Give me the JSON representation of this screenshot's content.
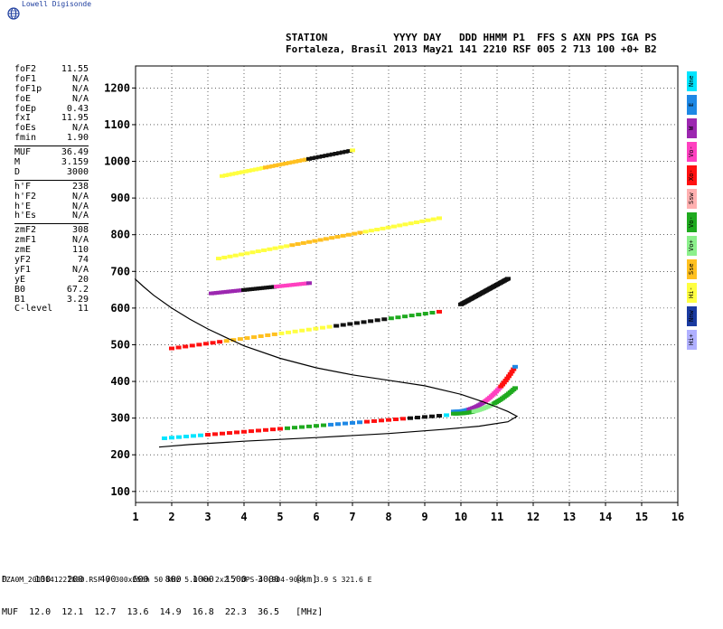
{
  "brand": "Lowell Digisonde",
  "header": {
    "line1": "STATION           YYYY DAY   DDD HHMM P1  FFS S AXN PPS IGA PS",
    "line2": "Fortaleza, Brasil 2013 May21 141 2210 RSF 005 2 713 100 +0+ B2"
  },
  "params": [
    [
      [
        "foF2",
        "11.55"
      ],
      [
        "foF1",
        "N/A"
      ],
      [
        "foF1p",
        "N/A"
      ],
      [
        "foE",
        "N/A"
      ],
      [
        "foEp",
        "0.43"
      ],
      [
        "fxI",
        "11.95"
      ],
      [
        "foEs",
        "N/A"
      ],
      [
        "fmin",
        "1.90"
      ]
    ],
    [
      [
        "MUF",
        "36.49"
      ],
      [
        "M",
        "3.159"
      ],
      [
        "D",
        "3000"
      ]
    ],
    [
      [
        "h'F",
        "238"
      ],
      [
        "h'F2",
        "N/A"
      ],
      [
        "h'E",
        "N/A"
      ],
      [
        "h'Es",
        "N/A"
      ]
    ],
    [
      [
        "zmF2",
        "308"
      ],
      [
        "zmF1",
        "N/A"
      ],
      [
        "zmE",
        "110"
      ],
      [
        "yF2",
        "74"
      ],
      [
        "yF1",
        "N/A"
      ],
      [
        "yE",
        "20"
      ],
      [
        "B0",
        "67.2"
      ],
      [
        "B1",
        "3.29"
      ],
      [
        "C-level",
        "11"
      ]
    ]
  ],
  "legend": [
    {
      "label": "Nne",
      "color": "#00e5ff"
    },
    {
      "label": "E",
      "color": "#1e88e5"
    },
    {
      "label": "W",
      "color": "#9c27b0"
    },
    {
      "label": "Vo-",
      "color": "#ff40c0"
    },
    {
      "label": "Xo-",
      "color": "#ff1010"
    },
    {
      "label": "Ssw",
      "color": "#ffb0b0"
    },
    {
      "label": "Vo-",
      "color": "#1faa1f"
    },
    {
      "label": "Vo+",
      "color": "#8cf08c"
    },
    {
      "label": "Sse",
      "color": "#ffc020"
    },
    {
      "label": "Hi-",
      "color": "#ffff40"
    },
    {
      "label": "Nnw",
      "color": "#1a3aa0"
    },
    {
      "label": "Hi+",
      "color": "#b0b0ff"
    }
  ],
  "muf_table": {
    "row1": "D     100   200   400   600   800  1000  1500  3000   [km]",
    "row2": "MUF  12.0  12.1  12.7  13.6  14.9  16.8  22.3  36.5   [MHz]"
  },
  "footer": "FZA0M_2013141221000.RSF / 300x256h 50 kHz 5.0 km 2x2 / DPS-4 (904-904)  3.9 S 321.6 E",
  "chart_data": {
    "type": "scatter",
    "x_ticks": [
      "1",
      "2",
      "3",
      "4",
      "5",
      "6",
      "7",
      "8",
      "9",
      "10",
      "11",
      "12",
      "13",
      "14",
      "15",
      "16"
    ],
    "y_ticks": [
      "100",
      "200",
      "300",
      "400",
      "500",
      "600",
      "700",
      "800",
      "900",
      "1000",
      "1100",
      "1200"
    ],
    "xlim": [
      1,
      16
    ],
    "ylim": [
      70,
      1260
    ],
    "grid": true,
    "profile": {
      "x": [
        0.98,
        1.2,
        1.5,
        2.0,
        2.5,
        3.0,
        3.5,
        4.0,
        5.0,
        6.0,
        7.0,
        8.0,
        9.0,
        10.0,
        10.6,
        11.0,
        11.3,
        11.55,
        11.3,
        10.5,
        9.5,
        8.0,
        6.0,
        4.0,
        2.5,
        1.65
      ],
      "y": [
        680,
        660,
        635,
        600,
        570,
        543,
        520,
        497,
        463,
        437,
        418,
        403,
        388,
        365,
        345,
        330,
        318,
        305,
        290,
        278,
        269,
        258,
        247,
        237,
        228,
        221
      ]
    },
    "traces": [
      {
        "name": "F1",
        "x1": 1.8,
        "y1": 245,
        "x2": 9.6,
        "y2": 308,
        "colors": [
          "#00e5ff",
          "#ff1010",
          "#ff1010",
          "#1faa1f",
          "#1e88e5",
          "#ff1010",
          "#111111"
        ]
      },
      {
        "name": "F2",
        "x1": 9.8,
        "y1": 318,
        "x2": 11.5,
        "y2": 440,
        "colors": [
          "#1e88e5",
          "#9c27b0",
          "#ff40c0",
          "#ff1010"
        ]
      },
      {
        "name": "F2o",
        "x1": 9.8,
        "y1": 312,
        "x2": 11.5,
        "y2": 382,
        "colors": [
          "#1faa1f",
          "#8cf08c",
          "#1faa1f"
        ]
      },
      {
        "name": "2F",
        "x1": 2.0,
        "y1": 490,
        "x2": 9.4,
        "y2": 590,
        "colors": [
          "#ff1010",
          "#ffc020",
          "#ffff40",
          "#111111",
          "#1faa1f"
        ]
      },
      {
        "name": "2Fb",
        "x1": 10.0,
        "y1": 610,
        "x2": 11.3,
        "y2": 680,
        "colors": [
          "#111111"
        ]
      },
      {
        "name": "2F2",
        "x1": 3.1,
        "y1": 640,
        "x2": 5.8,
        "y2": 668,
        "colors": [
          "#9c27b0",
          "#111111",
          "#ff40c0"
        ]
      },
      {
        "name": "3F",
        "x1": 3.3,
        "y1": 735,
        "x2": 9.4,
        "y2": 845,
        "colors": [
          "#ffff40",
          "#ffc020",
          "#ffff40"
        ]
      },
      {
        "name": "4F",
        "x1": 3.4,
        "y1": 960,
        "x2": 7.0,
        "y2": 1030,
        "colors": [
          "#ffff40",
          "#ffc020",
          "#111111"
        ]
      }
    ]
  }
}
